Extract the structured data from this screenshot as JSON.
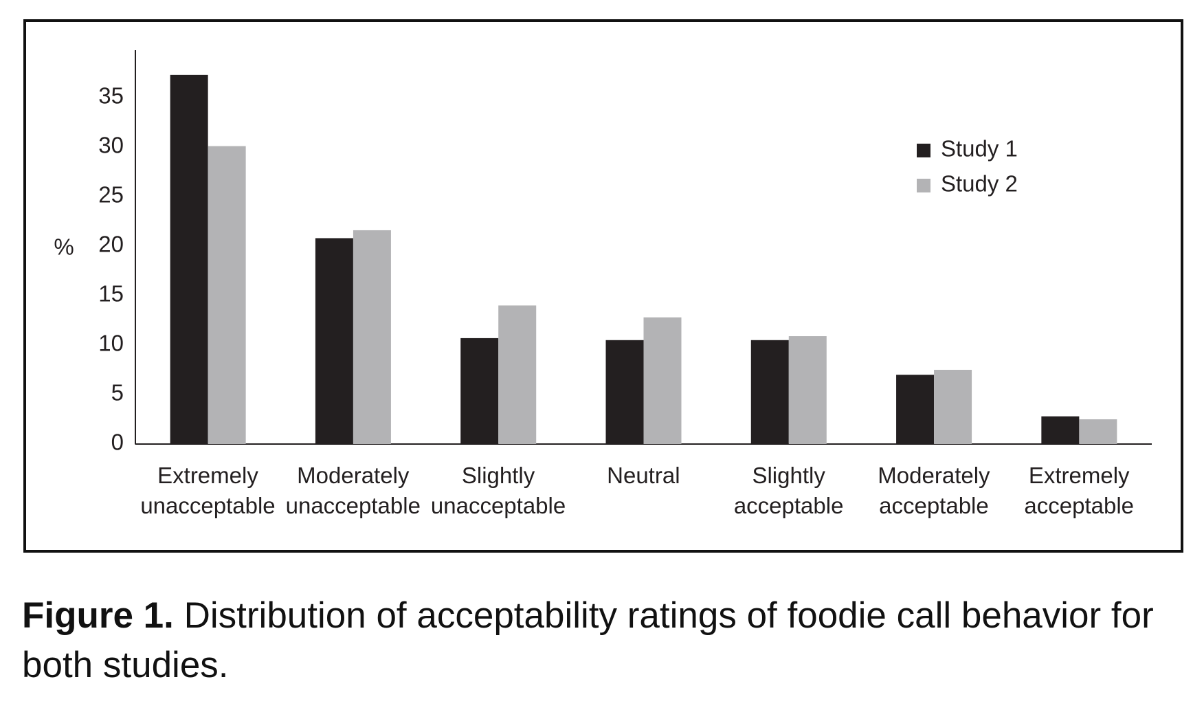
{
  "chart_data": {
    "type": "bar",
    "caption_label": "Figure 1.",
    "caption": "Distribution of acceptability ratings of foodie call behavior for both studies.",
    "y_label": "%",
    "categories": [
      "Extremely unacceptable",
      "Moderately unacceptable",
      "Slightly unacceptable",
      "Neutral",
      "Slightly acceptable",
      "Moderately acceptable",
      "Extremely acceptable"
    ],
    "series": [
      {
        "name": "Study 1",
        "color": "#231f20",
        "values": [
          37.3,
          20.8,
          10.7,
          10.5,
          10.5,
          7.0,
          2.8
        ]
      },
      {
        "name": "Study 2",
        "color": "#b3b3b5",
        "values": [
          30.1,
          21.6,
          14.0,
          12.8,
          10.9,
          7.5,
          2.5
        ]
      }
    ],
    "ylim": [
      0,
      40
    ],
    "yticks": [
      0,
      5,
      10,
      15,
      20,
      25,
      30,
      35
    ],
    "grid": false,
    "legend": "upper right"
  }
}
